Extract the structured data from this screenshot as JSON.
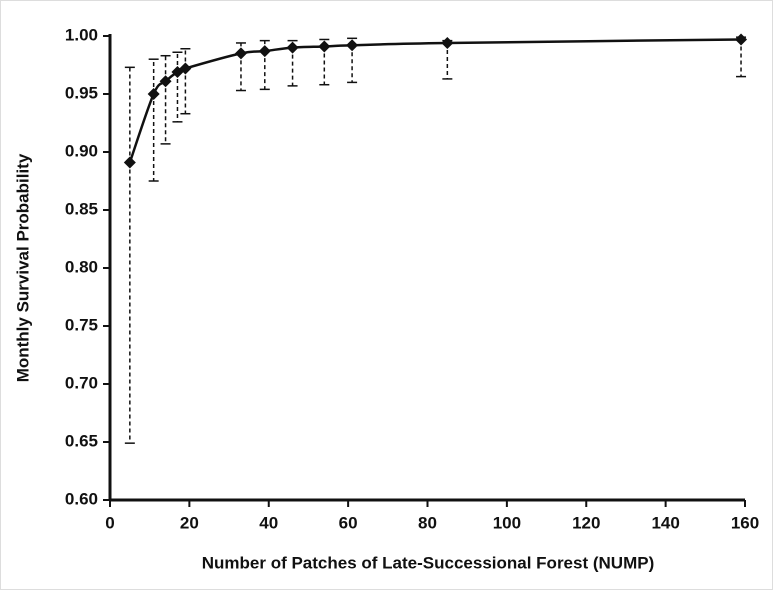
{
  "chart_data": {
    "type": "scatter",
    "x_label": "Number of Patches of Late-Successional Forest (NUMP)",
    "y_label": "Monthly Survival Probability",
    "x": [
      5,
      11,
      14,
      17,
      19,
      33,
      39,
      46,
      54,
      61,
      85,
      159
    ],
    "series": [
      {
        "color": "#111111",
        "values": [
          0.891,
          0.95,
          0.961,
          0.969,
          0.972,
          0.985,
          0.987,
          0.99,
          0.991,
          0.992,
          0.994,
          0.997
        ],
        "lower": [
          0.649,
          0.875,
          0.907,
          0.926,
          0.933,
          0.953,
          0.954,
          0.957,
          0.958,
          0.96,
          0.963,
          0.965
        ],
        "upper": [
          0.973,
          0.98,
          0.983,
          0.986,
          0.989,
          0.994,
          0.996,
          0.996,
          0.997,
          0.998,
          0.996,
          0.999
        ]
      }
    ],
    "xlim": [
      0,
      160
    ],
    "xticks": [
      0,
      20,
      40,
      60,
      80,
      100,
      120,
      140,
      160
    ],
    "ylim": [
      0.6,
      1.0
    ],
    "yticks": [
      {
        "value": 0.6,
        "label": "0.60"
      },
      {
        "value": 0.65,
        "label": "0.65"
      },
      {
        "value": 0.7,
        "label": "0.70"
      },
      {
        "value": 0.75,
        "label": "0.75"
      },
      {
        "value": 0.8,
        "label": "0.80"
      },
      {
        "value": 0.85,
        "label": "0.85"
      },
      {
        "value": 0.9,
        "label": "0.90"
      },
      {
        "value": 0.95,
        "label": "0.95"
      },
      {
        "value": 1.0,
        "label": "1.00"
      }
    ],
    "grid": false
  }
}
